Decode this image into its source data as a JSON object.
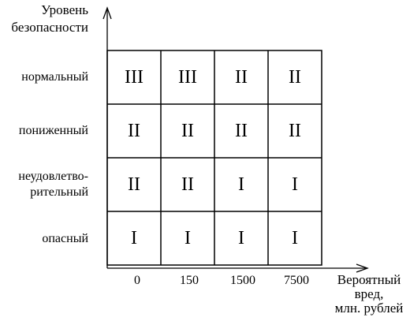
{
  "y_axis": {
    "title_lines": [
      "Уровень",
      "безопасности"
    ]
  },
  "x_axis": {
    "title_lines": [
      "Вероятный",
      "вред,",
      "млн. рублей"
    ],
    "ticks": [
      "0",
      "150",
      "1500",
      "7500"
    ]
  },
  "rows": [
    {
      "label_lines": [
        "нормальный"
      ],
      "cells": [
        "III",
        "III",
        "II",
        "II"
      ]
    },
    {
      "label_lines": [
        "пониженный"
      ],
      "cells": [
        "II",
        "II",
        "II",
        "II"
      ]
    },
    {
      "label_lines": [
        "неудовлетво-",
        "рительный"
      ],
      "cells": [
        "II",
        "II",
        "I",
        "I"
      ]
    },
    {
      "label_lines": [
        "опасный"
      ],
      "cells": [
        "I",
        "I",
        "I",
        "I"
      ]
    }
  ]
}
